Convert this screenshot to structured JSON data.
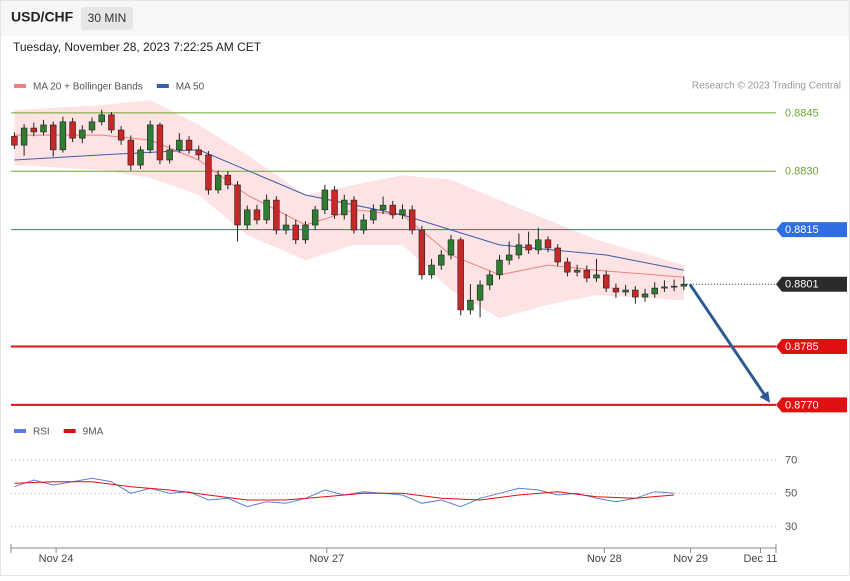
{
  "chart_data": {
    "type": "candlestick",
    "title": "USD/CHF",
    "timeframe": "30 MIN",
    "subtitle": "Tuesday, November 28, 2023 7:22:25 AM CET",
    "source": "Research © 2023 Trading Central",
    "up_color": "#2e7d32",
    "down_color": "#c62828",
    "ylim": [
      0.87687,
      0.88483
    ],
    "xlim": [
      -0.35,
      78.5
    ],
    "xticks": [
      {
        "value": 4.3,
        "label": "Nov 24"
      },
      {
        "value": 32.2,
        "label": "Nov 27"
      },
      {
        "value": 60.8,
        "label": "Nov 28"
      },
      {
        "value": 69.7,
        "label": "Nov 29"
      },
      {
        "value": 76.9,
        "label": "Dec 11"
      }
    ],
    "open": [
      0.8839,
      0.88367,
      0.88411,
      0.88401,
      0.88419,
      0.88355,
      0.88427,
      0.88385,
      0.88406,
      0.88427,
      0.88445,
      0.88406,
      0.8838,
      0.88316,
      0.88355,
      0.88419,
      0.88329,
      0.88355,
      0.8838,
      0.88355,
      0.88342,
      0.88252,
      0.8829,
      0.88265,
      0.88162,
      0.88201,
      0.88175,
      0.88226,
      0.88149,
      0.88162,
      0.88124,
      0.88162,
      0.88201,
      0.88252,
      0.88188,
      0.88226,
      0.88149,
      0.88175,
      0.88201,
      0.88213,
      0.88188,
      0.88201,
      0.88149,
      0.88034,
      0.88059,
      0.88085,
      0.88124,
      0.87944,
      0.87969,
      0.88008,
      0.88034,
      0.88072,
      0.88085,
      0.88111,
      0.88098,
      0.88124,
      0.88103,
      0.88067,
      0.88041,
      0.88046,
      0.88026,
      0.88034,
      0.88,
      0.8799,
      0.87995,
      0.87977,
      0.87985,
      0.88,
      0.88003,
      0.88005
    ],
    "high": [
      0.884,
      0.88421,
      0.88425,
      0.88432,
      0.88428,
      0.8844,
      0.88437,
      0.88418,
      0.88438,
      0.88458,
      0.88452,
      0.88416,
      0.88392,
      0.88364,
      0.8843,
      0.88425,
      0.88368,
      0.88398,
      0.8839,
      0.88366,
      0.88352,
      0.88302,
      0.883,
      0.88275,
      0.88212,
      0.88214,
      0.8824,
      0.88236,
      0.8819,
      0.88175,
      0.88172,
      0.88211,
      0.88265,
      0.88262,
      0.8824,
      0.88236,
      0.8819,
      0.88215,
      0.88235,
      0.88224,
      0.88215,
      0.88212,
      0.8816,
      0.88075,
      0.88098,
      0.88137,
      0.8813,
      0.8801,
      0.8802,
      0.88045,
      0.88085,
      0.8812,
      0.8814,
      0.88145,
      0.88155,
      0.88133,
      0.88113,
      0.88078,
      0.8806,
      0.88058,
      0.88075,
      0.88045,
      0.88012,
      0.88008,
      0.88005,
      0.87998,
      0.88015,
      0.8802,
      0.88022,
      0.8803
    ],
    "low": [
      0.88357,
      0.8834,
      0.8839,
      0.88392,
      0.88338,
      0.88348,
      0.88375,
      0.88372,
      0.88398,
      0.88418,
      0.88398,
      0.88368,
      0.88302,
      0.88306,
      0.88346,
      0.88318,
      0.8832,
      0.88347,
      0.88345,
      0.8833,
      0.8824,
      0.88243,
      0.88254,
      0.8812,
      0.8815,
      0.88164,
      0.88165,
      0.88138,
      0.88138,
      0.88113,
      0.88114,
      0.8815,
      0.8819,
      0.88178,
      0.88176,
      0.8814,
      0.88139,
      0.88165,
      0.8819,
      0.88178,
      0.88177,
      0.88138,
      0.88022,
      0.88024,
      0.88047,
      0.88074,
      0.8793,
      0.87932,
      0.87925,
      0.87995,
      0.88022,
      0.8806,
      0.88075,
      0.88088,
      0.88087,
      0.88092,
      0.88056,
      0.8803,
      0.8803,
      0.88015,
      0.88016,
      0.8799,
      0.87975,
      0.8798,
      0.8796,
      0.87965,
      0.87975,
      0.8799,
      0.87992,
      0.87995
    ],
    "close": [
      0.88367,
      0.88411,
      0.88401,
      0.88419,
      0.88355,
      0.88427,
      0.88385,
      0.88406,
      0.88427,
      0.88445,
      0.88406,
      0.8838,
      0.88316,
      0.88355,
      0.88419,
      0.88329,
      0.88355,
      0.8838,
      0.88355,
      0.88342,
      0.88252,
      0.8829,
      0.88265,
      0.88162,
      0.88201,
      0.88175,
      0.88226,
      0.88149,
      0.88162,
      0.88124,
      0.88162,
      0.88201,
      0.88252,
      0.88188,
      0.88226,
      0.88149,
      0.88175,
      0.88201,
      0.88213,
      0.88188,
      0.88201,
      0.88149,
      0.88034,
      0.88059,
      0.88085,
      0.88124,
      0.87944,
      0.87969,
      0.88008,
      0.88034,
      0.88072,
      0.88085,
      0.88111,
      0.88098,
      0.88124,
      0.88103,
      0.88067,
      0.88041,
      0.88046,
      0.88026,
      0.88034,
      0.88,
      0.8799,
      0.87995,
      0.87977,
      0.87985,
      0.88,
      0.88003,
      0.88005,
      0.8801
    ],
    "overlays": [
      {
        "name": "MA 20 + Bollinger Bands",
        "color": "#f08080",
        "band_color": "#fde3e3",
        "x": [
          0,
          9,
          14,
          19,
          24,
          30,
          35,
          40,
          45,
          50,
          55,
          60,
          69
        ],
        "values": [
          0.88393,
          0.88393,
          0.8838,
          0.88329,
          0.88239,
          0.88162,
          0.88201,
          0.88188,
          0.88085,
          0.88034,
          0.88059,
          0.88046,
          0.88028
        ],
        "upper": [
          0.88457,
          0.8847,
          0.88483,
          0.88419,
          0.88342,
          0.88239,
          0.88265,
          0.8829,
          0.88278,
          0.88226,
          0.88175,
          0.88124,
          0.88059
        ],
        "lower": [
          0.88316,
          0.88303,
          0.88283,
          0.88239,
          0.88136,
          0.88072,
          0.88111,
          0.88111,
          0.87995,
          0.87923,
          0.87957,
          0.87982,
          0.87969
        ]
      },
      {
        "name": "MA 50",
        "color": "#3b5ea8",
        "x": [
          0,
          9,
          19,
          30,
          40,
          50,
          61,
          69
        ],
        "values": [
          0.88329,
          0.88342,
          0.88355,
          0.88239,
          0.88188,
          0.88111,
          0.88085,
          0.88046
        ]
      }
    ],
    "levels": [
      {
        "value": 0.8845,
        "color": "#6aa62e",
        "line": "thin",
        "boxed": false
      },
      {
        "value": 0.883,
        "label": "0.8830",
        "color": "#6aa62e",
        "line": "thin",
        "boxed": false
      },
      {
        "value": 0.8815,
        "color": "#2f6fe0",
        "line": "thin",
        "boxed": true
      },
      {
        "value": 0.8801,
        "color": "#2b2b2b",
        "line": "dotted",
        "boxed": true
      },
      {
        "value": 0.8785,
        "color": "#e01010",
        "line": "thick",
        "boxed": true
      },
      {
        "value": 0.877,
        "label": "0.8770",
        "color": "#e01010",
        "line": "thick",
        "boxed": true
      }
    ],
    "forecast_color": "#2e5a94",
    "rsi": {
      "type": "line",
      "ylim": [
        22,
        79
      ],
      "yticks": [
        70,
        50,
        30
      ],
      "series": [
        {
          "name": "RSI",
          "color": "#5b7fd6",
          "x": [
            0,
            2,
            4,
            6,
            8,
            10,
            12,
            14,
            16,
            18,
            20,
            22,
            24,
            26,
            28,
            30,
            32,
            34,
            36,
            38,
            40,
            42,
            44,
            46,
            48,
            50,
            52,
            54,
            56,
            58,
            60,
            62,
            64,
            66,
            68
          ],
          "values": [
            54,
            58,
            55,
            57,
            59,
            57,
            50,
            53,
            50,
            51,
            46,
            47,
            42,
            45,
            44,
            47,
            52,
            49,
            51,
            50,
            49,
            44,
            46,
            42,
            47,
            50,
            53,
            52,
            49,
            50,
            47,
            45,
            47,
            51,
            50
          ]
        },
        {
          "name": "9MA",
          "color": "#e01010",
          "x": [
            0,
            4,
            8,
            12,
            16,
            20,
            24,
            28,
            32,
            36,
            40,
            44,
            48,
            52,
            56,
            60,
            64,
            68
          ],
          "values": [
            56,
            57,
            57,
            54,
            52,
            49,
            46,
            46,
            48,
            50,
            50,
            47,
            46,
            49,
            51,
            48,
            47,
            49
          ]
        }
      ]
    }
  }
}
